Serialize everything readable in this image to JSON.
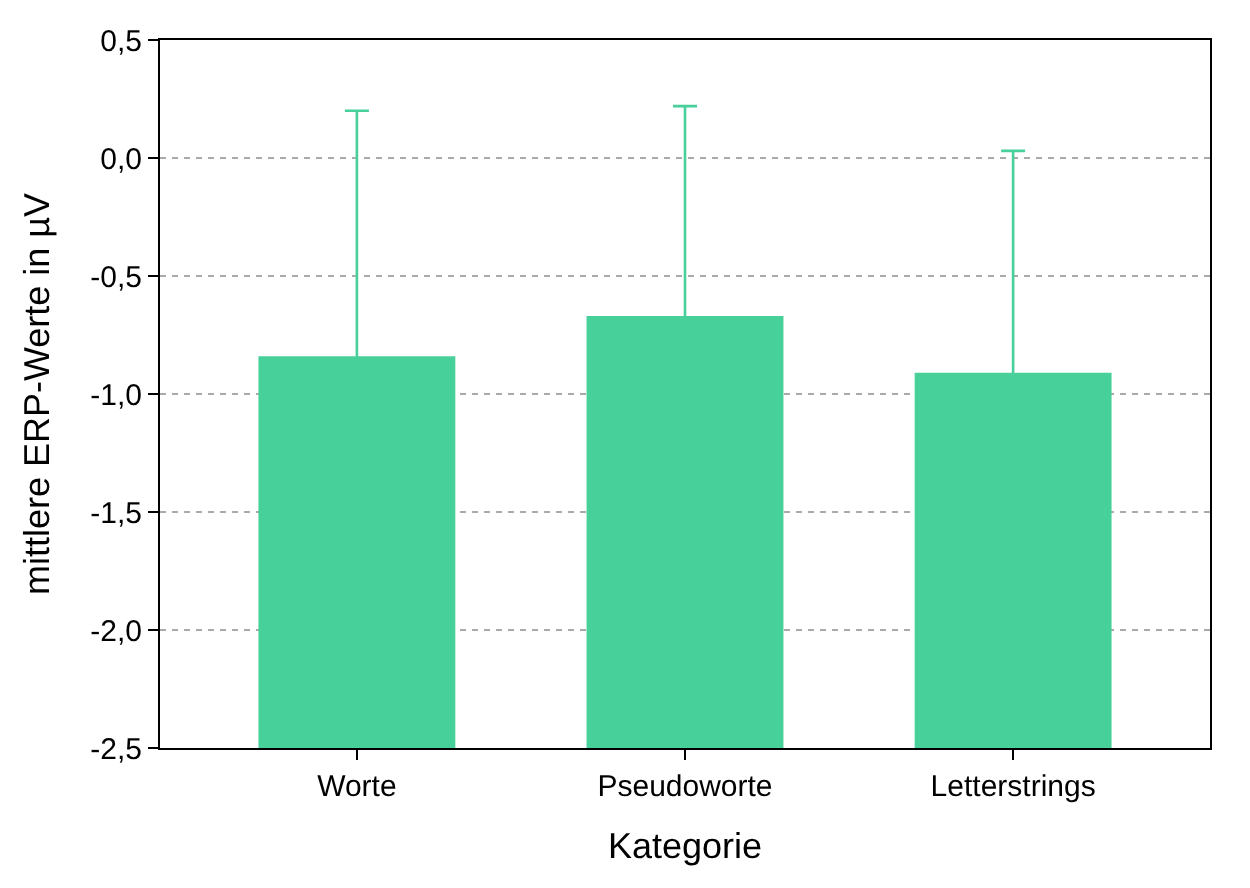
{
  "chart_data": {
    "type": "bar",
    "xlabel": "Kategorie",
    "ylabel": "mittlere ERP-Werte in µV",
    "categories": [
      "Worte",
      "Pseudoworte",
      "Letterstrings"
    ],
    "base": [
      -2.5,
      -2.5,
      -2.5
    ],
    "values": [
      1.66,
      1.83,
      1.59
    ],
    "errors": [
      1.04,
      0.89,
      0.94
    ],
    "color": "#48d09a",
    "ylim": [
      -2.5,
      0.5
    ],
    "yticks": [
      {
        "value": -2.5,
        "label": "-2,5"
      },
      {
        "value": -2.0,
        "label": "-2,0"
      },
      {
        "value": -1.5,
        "label": "-1,5"
      },
      {
        "value": -1.0,
        "label": "-1,0"
      },
      {
        "value": -0.5,
        "label": "-0,5"
      },
      {
        "value": 0.0,
        "label": "0,0"
      },
      {
        "value": 0.5,
        "label": "0,5"
      }
    ],
    "grid": "y"
  }
}
